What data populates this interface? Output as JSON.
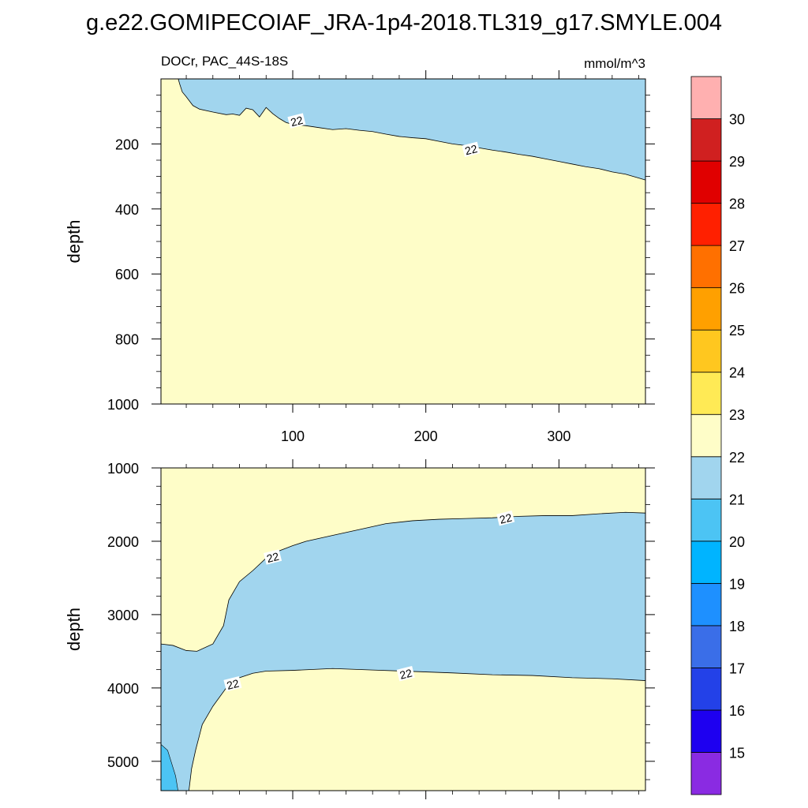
{
  "title": "g.e22.GOMIPECOIAF_JRA-1p4-2018.TL319_g17.SMYLE.004",
  "variable_label": "DOCr, PAC_44S-18S",
  "units_label": "mmol/m^3",
  "colors": {
    "below_22": "#a1d5ee",
    "range_22_23": "#fefdc8",
    "range_20_21": "#4cc4f4"
  },
  "chart_data": [
    {
      "type": "contour",
      "panel": "upper",
      "ylabel": "depth",
      "xlabel": "",
      "xlim": [
        1,
        365
      ],
      "ylim": [
        1000,
        0
      ],
      "y_inverted": true,
      "xticks": [
        100,
        200,
        300
      ],
      "yticks": [
        200,
        400,
        600,
        800,
        1000
      ],
      "contour_lines": [
        {
          "level": 22,
          "points": [
            [
              14,
              0
            ],
            [
              15,
              15
            ],
            [
              17,
              40
            ],
            [
              20,
              55
            ],
            [
              25,
              82
            ],
            [
              30,
              93
            ],
            [
              40,
              102
            ],
            [
              50,
              110
            ],
            [
              55,
              108
            ],
            [
              60,
              112
            ],
            [
              65,
              90
            ],
            [
              70,
              95
            ],
            [
              75,
              117
            ],
            [
              80,
              88
            ],
            [
              85,
              107
            ],
            [
              90,
              122
            ],
            [
              95,
              134
            ],
            [
              100,
              140
            ],
            [
              110,
              144
            ],
            [
              120,
              150
            ],
            [
              130,
              156
            ],
            [
              140,
              153
            ],
            [
              150,
              158
            ],
            [
              160,
              162
            ],
            [
              170,
              170
            ],
            [
              180,
              177
            ],
            [
              190,
              181
            ],
            [
              200,
              184
            ],
            [
              210,
              192
            ],
            [
              220,
              200
            ],
            [
              230,
              205
            ],
            [
              240,
              212
            ],
            [
              250,
              219
            ],
            [
              260,
              225
            ],
            [
              270,
              232
            ],
            [
              280,
              238
            ],
            [
              290,
              246
            ],
            [
              300,
              254
            ],
            [
              310,
              262
            ],
            [
              320,
              270
            ],
            [
              330,
              276
            ],
            [
              340,
              286
            ],
            [
              350,
              293
            ],
            [
              360,
              305
            ],
            [
              365,
              311
            ]
          ]
        }
      ],
      "contour_labels": [
        {
          "text": "22",
          "x": 103,
          "y": 130
        },
        {
          "text": "22",
          "x": 234,
          "y": 218
        }
      ]
    },
    {
      "type": "contour",
      "panel": "lower",
      "ylabel": "depth",
      "xlabel": "",
      "xlim": [
        1,
        365
      ],
      "ylim": [
        5400,
        1000
      ],
      "y_inverted": true,
      "xticks": [
        100,
        200,
        300
      ],
      "yticks": [
        1000,
        2000,
        3000,
        4000,
        5000
      ],
      "contour_lines": [
        {
          "level": 22,
          "points": [
            [
              1,
              3400
            ],
            [
              10,
              3420
            ],
            [
              20,
              3490
            ],
            [
              28,
              3500
            ],
            [
              40,
              3400
            ],
            [
              48,
              3150
            ],
            [
              52,
              2800
            ],
            [
              60,
              2550
            ],
            [
              70,
              2400
            ],
            [
              80,
              2230
            ],
            [
              90,
              2130
            ],
            [
              100,
              2060
            ],
            [
              110,
              2000
            ],
            [
              130,
              1920
            ],
            [
              150,
              1840
            ],
            [
              170,
              1760
            ],
            [
              190,
              1720
            ],
            [
              210,
              1700
            ],
            [
              230,
              1690
            ],
            [
              250,
              1680
            ],
            [
              270,
              1660
            ],
            [
              290,
              1650
            ],
            [
              310,
              1650
            ],
            [
              330,
              1625
            ],
            [
              350,
              1605
            ],
            [
              365,
              1615
            ]
          ]
        },
        {
          "level": 22,
          "points": [
            [
              22,
              5400
            ],
            [
              24,
              5100
            ],
            [
              27,
              4850
            ],
            [
              32,
              4500
            ],
            [
              40,
              4250
            ],
            [
              50,
              4000
            ],
            [
              60,
              3860
            ],
            [
              70,
              3800
            ],
            [
              80,
              3770
            ],
            [
              100,
              3760
            ],
            [
              130,
              3735
            ],
            [
              160,
              3755
            ],
            [
              190,
              3775
            ],
            [
              220,
              3795
            ],
            [
              250,
              3820
            ],
            [
              280,
              3830
            ],
            [
              310,
              3860
            ],
            [
              340,
              3875
            ],
            [
              365,
              3900
            ]
          ]
        }
      ],
      "filled_regions": [
        {
          "level_range": [
            20,
            21
          ],
          "points": [
            [
              1,
              4750
            ],
            [
              6,
              4850
            ],
            [
              12,
              5200
            ],
            [
              14,
              5400
            ],
            [
              1,
              5400
            ]
          ]
        }
      ],
      "contour_labels": [
        {
          "text": "22",
          "x": 85,
          "y": 2220
        },
        {
          "text": "22",
          "x": 260,
          "y": 1690
        },
        {
          "text": "22",
          "x": 55,
          "y": 3950
        },
        {
          "text": "22",
          "x": 185,
          "y": 3810
        }
      ]
    }
  ],
  "colorbar": {
    "levels": [
      "15",
      "16",
      "17",
      "18",
      "19",
      "20",
      "21",
      "22",
      "23",
      "24",
      "25",
      "26",
      "27",
      "28",
      "29",
      "30"
    ],
    "colors": [
      "#8a2be2",
      "#1e00f0",
      "#2341e8",
      "#3a6ee8",
      "#1e90ff",
      "#00b4ff",
      "#4cc4f4",
      "#a1d5ee",
      "#fefdc8",
      "#ffea55",
      "#ffc71f",
      "#ffa000",
      "#ff7000",
      "#ff2000",
      "#e00000",
      "#d02020",
      "#ffb0b0"
    ]
  }
}
